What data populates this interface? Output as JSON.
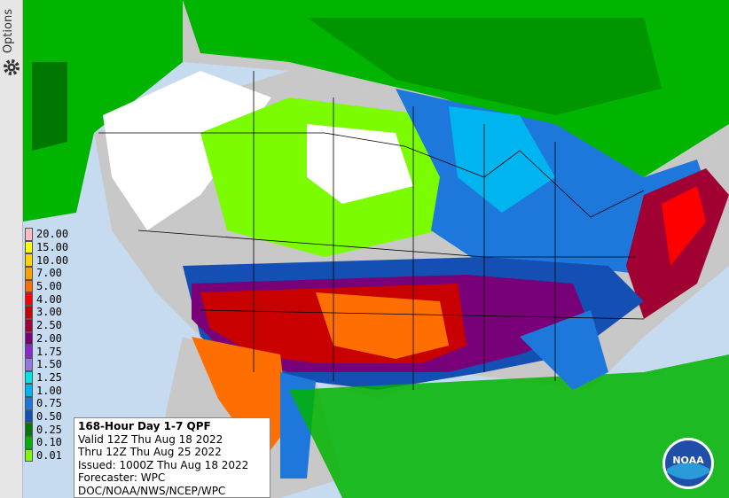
{
  "sidebar": {
    "label": "Options"
  },
  "legend": {
    "entries": [
      {
        "label": "20.00",
        "color": "#ffbcbc"
      },
      {
        "label": "15.00",
        "color": "#ffff00"
      },
      {
        "label": "10.00",
        "color": "#ffd200"
      },
      {
        "label": "7.00",
        "color": "#ffa000"
      },
      {
        "label": "5.00",
        "color": "#ff6e00"
      },
      {
        "label": "4.00",
        "color": "#ff0000"
      },
      {
        "label": "3.00",
        "color": "#c80000"
      },
      {
        "label": "2.50",
        "color": "#a00032"
      },
      {
        "label": "2.00",
        "color": "#780078"
      },
      {
        "label": "1.75",
        "color": "#8c28d2"
      },
      {
        "label": "1.50",
        "color": "#9678dc"
      },
      {
        "label": "1.25",
        "color": "#00e6e6"
      },
      {
        "label": "1.00",
        "color": "#00b4f0"
      },
      {
        "label": "0.75",
        "color": "#1e78dc"
      },
      {
        "label": "0.50",
        "color": "#1450b4"
      },
      {
        "label": "0.25",
        "color": "#007800"
      },
      {
        "label": "0.10",
        "color": "#00b400"
      },
      {
        "label": "0.01",
        "color": "#7cfc00"
      }
    ]
  },
  "info": {
    "title": "168-Hour Day 1-7 QPF",
    "lines": [
      "Valid 12Z Thu Aug 18 2022",
      "Thru 12Z Thu Aug 25 2022",
      "Issued: 1000Z Thu Aug 18 2022",
      "Forecaster: WPC",
      "DOC/NOAA/NWS/NCEP/WPC"
    ]
  },
  "logo": {
    "text": "NOAA"
  }
}
